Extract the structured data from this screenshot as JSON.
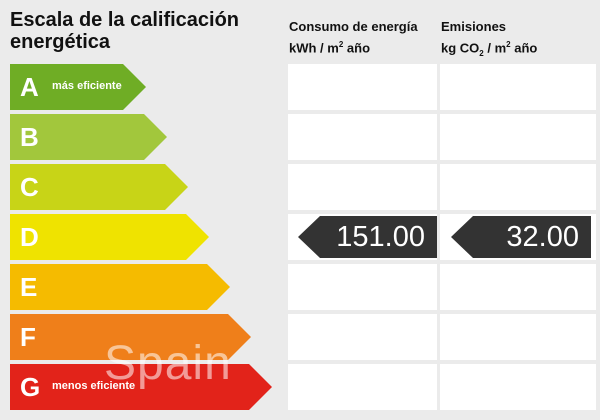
{
  "title": "Escala de la calificación energética",
  "columns": {
    "energy": {
      "heading": "Consumo de energía",
      "unit_pre": "kWh / m",
      "unit_sup": "2",
      "unit_post": " año"
    },
    "emissions": {
      "heading": "Emisiones",
      "unit_pre": "kg CO",
      "unit_sub": "2",
      "unit_post": " / m",
      "unit_sup": "2",
      "unit_post2": " año"
    }
  },
  "bands": [
    {
      "letter": "A",
      "label": "más eficiente",
      "color": "#6fad25"
    },
    {
      "letter": "B",
      "label": "",
      "color": "#a2c73c"
    },
    {
      "letter": "C",
      "label": "",
      "color": "#c8d417"
    },
    {
      "letter": "D",
      "label": "",
      "color": "#efe300"
    },
    {
      "letter": "E",
      "label": "",
      "color": "#f5bb00"
    },
    {
      "letter": "F",
      "label": "",
      "color": "#ef7f1a"
    },
    {
      "letter": "G",
      "label": "menos eficiente",
      "color": "#e2231a"
    }
  ],
  "rating": {
    "band": "D",
    "energy_value": "151.00",
    "emissions_value": "32.00"
  },
  "watermark": "Spain"
}
